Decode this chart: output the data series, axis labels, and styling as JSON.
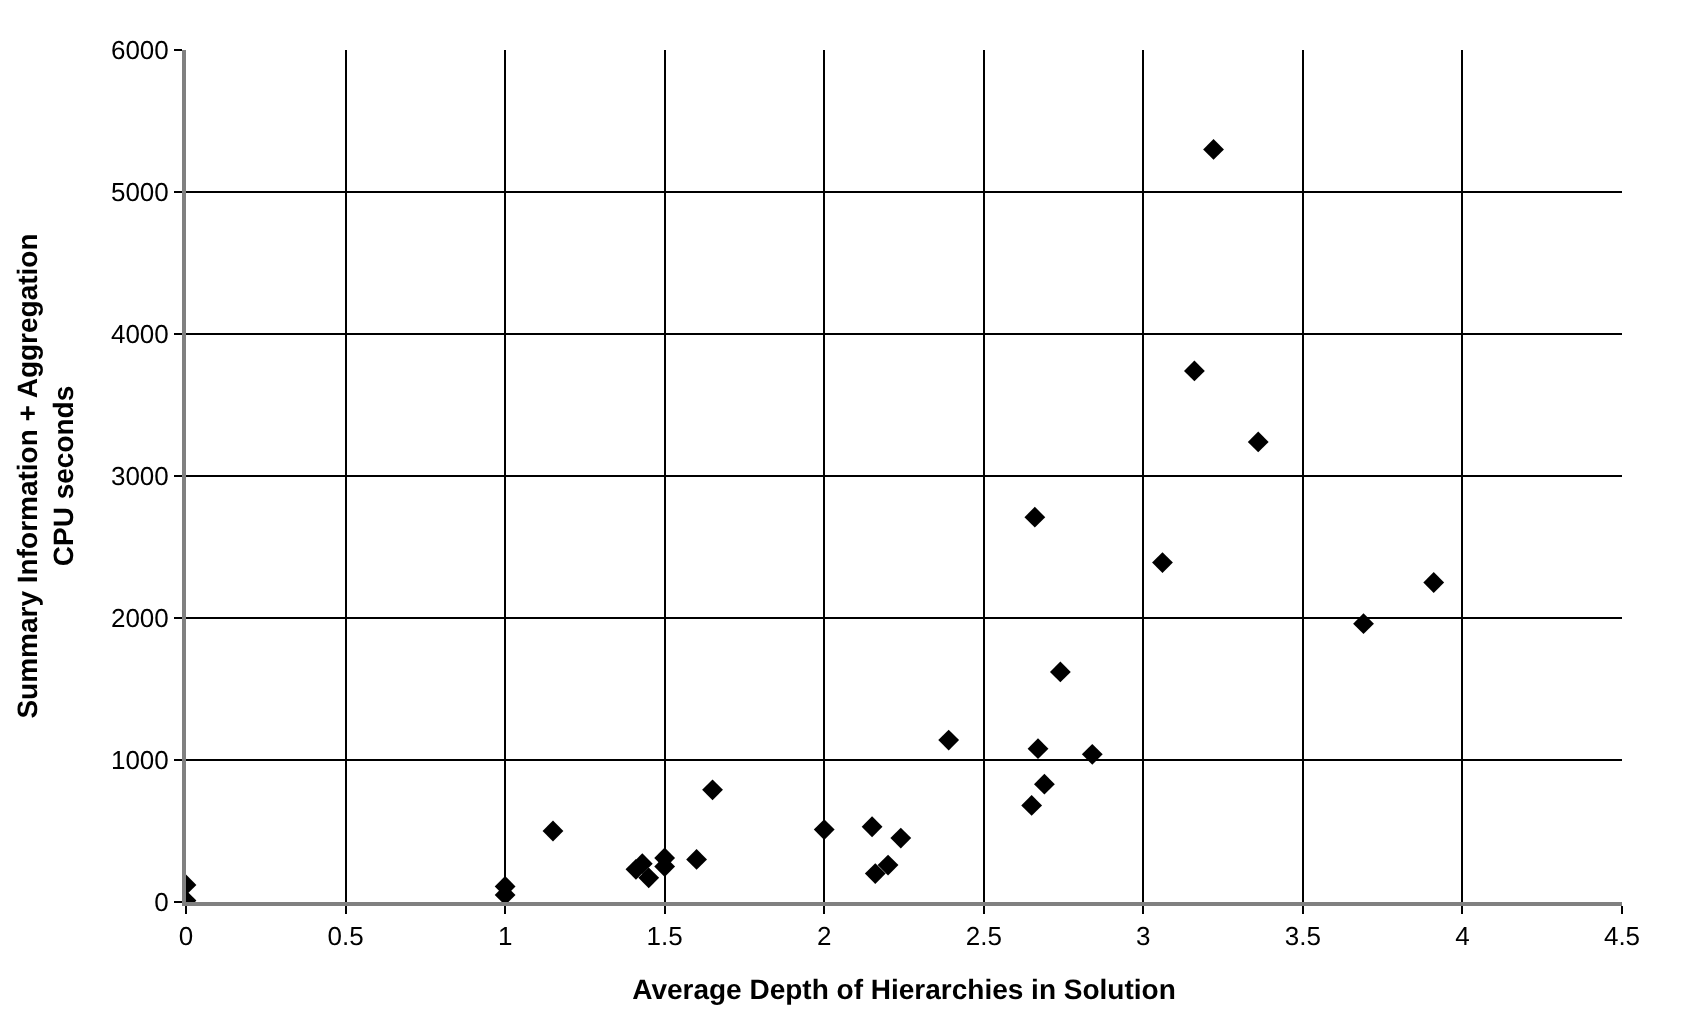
{
  "chart_data": {
    "type": "scatter",
    "xlabel": "Average Depth of Hierarchies in Solution",
    "ylabel": "Summary Information + Aggregation\nCPU seconds",
    "x": [
      0,
      0,
      1,
      1,
      1.15,
      1.41,
      1.43,
      1.45,
      1.5,
      1.5,
      1.6,
      1.65,
      2,
      2.15,
      2.16,
      2.2,
      2.24,
      2.39,
      2.65,
      2.66,
      2.67,
      2.69,
      2.74,
      2.84,
      3.06,
      3.16,
      3.22,
      3.36,
      3.69,
      3.91
    ],
    "values": [
      10,
      120,
      50,
      110,
      500,
      230,
      270,
      170,
      310,
      250,
      300,
      790,
      510,
      530,
      200,
      260,
      450,
      1140,
      680,
      2710,
      1080,
      830,
      1620,
      1040,
      2390,
      3740,
      5300,
      3240,
      1960,
      2250
    ],
    "color": "#000000",
    "marker": "diamond",
    "grid": true,
    "legend": false,
    "xlim": [
      0,
      4.5
    ],
    "xticks": [
      0,
      0.5,
      1,
      1.5,
      2,
      2.5,
      3,
      3.5,
      4,
      4.5
    ],
    "ylim": [
      0,
      6000
    ],
    "yticks": [
      0,
      1000,
      2000,
      3000,
      4000,
      5000,
      6000
    ]
  }
}
